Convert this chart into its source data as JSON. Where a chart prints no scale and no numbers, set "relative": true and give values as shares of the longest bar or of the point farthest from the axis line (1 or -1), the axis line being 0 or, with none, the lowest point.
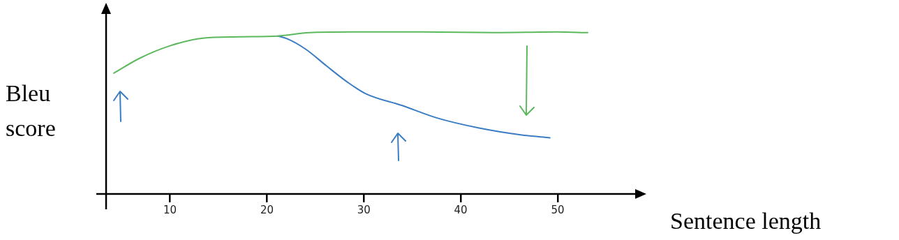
{
  "chart_data": {
    "type": "line",
    "xlabel": "Sentence length",
    "ylabel": "Bleu score",
    "relative": true,
    "marker": "none",
    "xlim": [
      3.4,
      58
    ],
    "xticks": [
      10,
      20,
      30,
      40,
      50
    ],
    "series": [
      {
        "color": "#5cb85c",
        "x": [
          4.2,
          6.9,
          10,
          13.4,
          17.1,
          21.1,
          24.4,
          28.8,
          36.1,
          43.4,
          50,
          53.1
        ],
        "values": [
          0.746,
          0.839,
          0.915,
          0.962,
          0.97,
          0.975,
          0.996,
          1.0,
          1.0,
          0.996,
          1.0,
          0.996
        ]
      },
      {
        "color": "#3a7dc4",
        "x": [
          21.1,
          22.1,
          24.0,
          26.2,
          28.3,
          30.2,
          33.9,
          37.5,
          41.9,
          46.3,
          49.2
        ],
        "values": [
          0.975,
          0.958,
          0.894,
          0.788,
          0.691,
          0.619,
          0.547,
          0.47,
          0.407,
          0.364,
          0.347
        ]
      }
    ]
  }
}
